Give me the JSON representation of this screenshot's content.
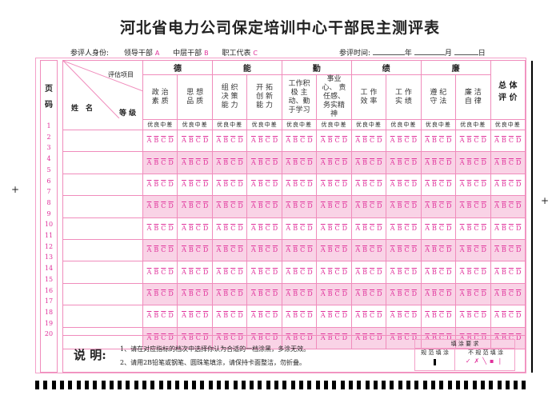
{
  "title": "河北省电力公司保定培训中心干部民主测评表",
  "info": {
    "identity_label": "参评人身份:",
    "leader": "领导干部",
    "leader_code": "A",
    "middle": "中层干部",
    "middle_code": "B",
    "staff": "职工代表",
    "staff_code": "C",
    "time_label": "参评时间:",
    "year": "年",
    "month": "月",
    "day": "日"
  },
  "page_code_label": [
    "页",
    "码"
  ],
  "header": {
    "eval_item": "评估项目",
    "name": "姓　名",
    "grade": "等 级",
    "total": "总 体 评 价"
  },
  "groups": [
    {
      "label": "德",
      "subs": [
        "政 治 素 质",
        "思 想 品 质"
      ]
    },
    {
      "label": "能",
      "subs": [
        "组 织 决 策 能 力",
        "开 拓 创 新 能 力"
      ]
    },
    {
      "label": "勤",
      "subs": [
        "工作积极 主动、勤 于学习",
        "事业心、 责任感、 务实精神"
      ]
    },
    {
      "label": "绩",
      "subs": [
        "工 作 效 率",
        "工 作 实 绩"
      ]
    },
    {
      "label": "廉",
      "subs": [
        "遵 纪 守 法",
        "廉 洁 自 律"
      ]
    }
  ],
  "grade_labels": "优良中差",
  "options": [
    "A",
    "B",
    "C",
    "D"
  ],
  "page_numbers": [
    "1",
    "2",
    "3",
    "4",
    "5",
    "6",
    "7",
    "8",
    "9",
    "10",
    "11",
    "12",
    "13",
    "14",
    "15",
    "16",
    "17",
    "18",
    "19",
    "20"
  ],
  "notes": {
    "label": "说 明:",
    "line1": "1、请在对应指标的档次中选择你认为合适的一档涂黑，多涂无效。",
    "line2": "2、请用2B铅笔或钢笔、圆珠笔填涂，请保持卡面整洁，勿折叠。"
  },
  "fill_req": {
    "title": "填 涂 要 求",
    "correct": "规 范 填 涂",
    "incorrect": "不 规 范 填 涂"
  },
  "colors": {
    "accent": "#e0309a",
    "shade": "#f9d3e6",
    "border": "#f08cbc"
  }
}
